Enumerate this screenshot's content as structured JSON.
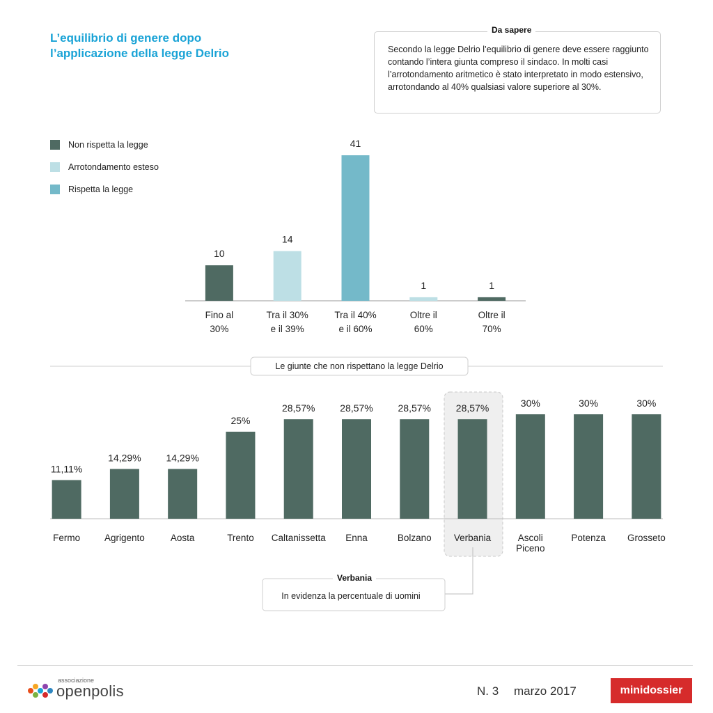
{
  "title": {
    "line1": "L’equilibrio di genere dopo",
    "line2": "l’applicazione della legge Delrio"
  },
  "info": {
    "heading": "Da sapere",
    "text": "Secondo la legge Delrio l’equilibrio di genere deve essere raggiunto contando l’intera giunta compreso il sindaco. In molti casi l’arrotondamento aritmetico è stato interpretato in modo estensivo, arrotondando al 40% qualsiasi valore superiore al 30%."
  },
  "legend": [
    {
      "label": "Non rispetta la legge",
      "color": "#4f6a62"
    },
    {
      "label": "Arrotondamento esteso",
      "color": "#bddfe5"
    },
    {
      "label": "Rispetta la legge",
      "color": "#74b9c9"
    }
  ],
  "divider_label": "Le giunte che non rispettano la legge Delrio",
  "callout": {
    "heading": "Verbania",
    "text": "In evidenza la percentuale di uomini"
  },
  "footer": {
    "logo_small": "associazione",
    "logo_main": "openpolis",
    "issue": "N. 3",
    "date": "marzo 2017",
    "badge": "minidossier"
  },
  "chart_data": [
    {
      "type": "bar",
      "categories": [
        [
          "Fino al",
          "30%"
        ],
        [
          "Tra il 30%",
          "e il 39%"
        ],
        [
          "Tra il 40%",
          "e il 60%"
        ],
        [
          "Oltre il",
          "60%"
        ],
        [
          "Oltre il",
          "70%"
        ]
      ],
      "values": [
        10,
        14,
        41,
        1,
        1
      ],
      "value_labels": [
        "10",
        "14",
        "41",
        "1",
        "1"
      ],
      "colors": [
        "#4f6a62",
        "#bddfe5",
        "#74b9c9",
        "#bddfe5",
        "#4f6a62"
      ],
      "ylim": [
        0,
        41
      ]
    },
    {
      "type": "bar",
      "categories": [
        [
          "Fermo"
        ],
        [
          "Agrigento"
        ],
        [
          "Aosta"
        ],
        [
          "Trento"
        ],
        [
          "Caltanissetta"
        ],
        [
          "Enna"
        ],
        [
          "Bolzano"
        ],
        [
          "Verbania"
        ],
        [
          "Ascoli",
          "Piceno"
        ],
        [
          "Potenza"
        ],
        [
          "Grosseto"
        ]
      ],
      "values": [
        11.11,
        14.29,
        14.29,
        25,
        28.57,
        28.57,
        28.57,
        28.57,
        30,
        30,
        30
      ],
      "value_labels": [
        "11,11%",
        "14,29%",
        "14,29%",
        "25%",
        "28,57%",
        "28,57%",
        "28,57%",
        "28,57%",
        "30%",
        "30%",
        "30%"
      ],
      "highlight": "Verbania",
      "color": "#4f6a62"
    }
  ]
}
